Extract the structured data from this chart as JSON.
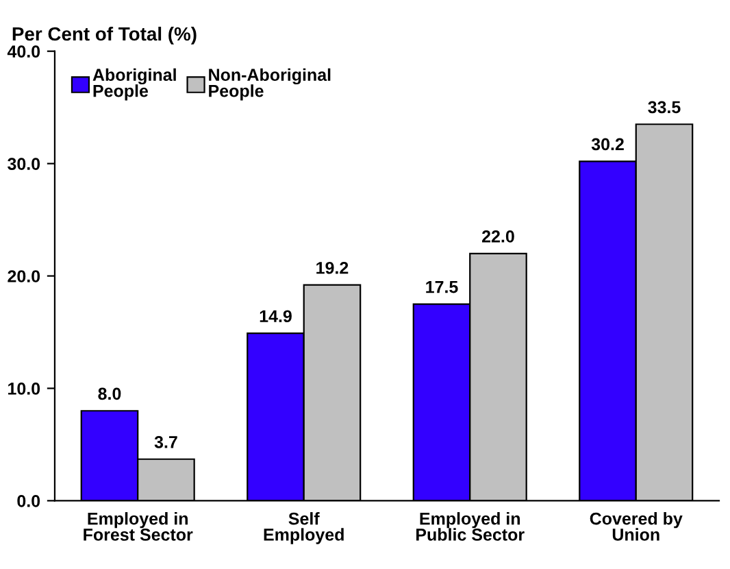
{
  "chart_data": {
    "type": "bar",
    "ylabel": "Per Cent of Total (%)",
    "categories": [
      "Employed in\nForest Sector",
      "Self\nEmployed",
      "Employed in\nPublic Sector",
      "Covered by\nUnion"
    ],
    "series": [
      {
        "name": "Aboriginal\nPeople",
        "color": "#3300ff",
        "values": [
          8.0,
          14.9,
          17.5,
          30.2
        ],
        "value_labels": [
          "8.0",
          "14.9",
          "17.5",
          "30.2"
        ]
      },
      {
        "name": "Non-Aboriginal\nPeople",
        "color": "#c0c0c0",
        "values": [
          3.7,
          19.2,
          22.0,
          33.5
        ],
        "value_labels": [
          "3.7",
          "19.2",
          "22.0",
          "33.5"
        ]
      }
    ],
    "ylim": [
      0,
      40
    ],
    "yticks": [
      {
        "value": 0,
        "label": "0.0"
      },
      {
        "value": 10,
        "label": "10.0"
      },
      {
        "value": 20,
        "label": "20.0"
      },
      {
        "value": 30,
        "label": "30.0"
      },
      {
        "value": 40,
        "label": "40.0"
      }
    ],
    "grid": false,
    "legend": "top left"
  }
}
